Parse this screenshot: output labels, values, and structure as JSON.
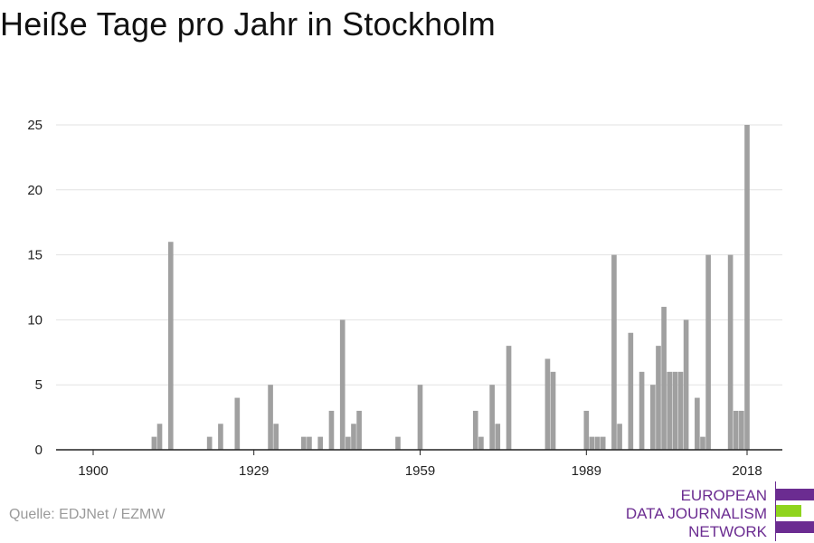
{
  "title": "Heiße Tage pro Jahr in Stockholm",
  "source": "Quelle: EDJNet / EZMW",
  "logo": {
    "line1": "EUROPEAN",
    "line2": "DATA JOURNALISM",
    "line3": "NETWORK",
    "colors": {
      "purple": "#6b2c91",
      "green": "#8fd41e"
    }
  },
  "colors": {
    "bar": "#a0a0a0",
    "grid": "#e2e2e2",
    "axis": "#222222"
  },
  "chart_data": {
    "type": "bar",
    "title": "Heiße Tage pro Jahr in Stockholm",
    "xlabel": "",
    "ylabel": "",
    "x_range": [
      1900,
      2018
    ],
    "ylim": [
      0,
      25
    ],
    "y_ticks": [
      0,
      5,
      10,
      15,
      20,
      25
    ],
    "x_ticks": [
      1900,
      1929,
      1959,
      1989,
      2018
    ],
    "grid": true,
    "x": [
      1911,
      1912,
      1914,
      1921,
      1923,
      1926,
      1932,
      1933,
      1938,
      1939,
      1941,
      1943,
      1945,
      1946,
      1947,
      1948,
      1955,
      1959,
      1969,
      1970,
      1972,
      1973,
      1975,
      1982,
      1983,
      1989,
      1990,
      1991,
      1992,
      1994,
      1995,
      1997,
      1999,
      2001,
      2002,
      2003,
      2004,
      2005,
      2006,
      2007,
      2009,
      2010,
      2011,
      2015,
      2016,
      2017,
      2018
    ],
    "values": [
      1,
      2,
      16,
      1,
      2,
      4,
      5,
      2,
      1,
      1,
      1,
      3,
      10,
      1,
      2,
      3,
      1,
      5,
      3,
      1,
      5,
      2,
      8,
      7,
      6,
      3,
      1,
      1,
      1,
      15,
      2,
      9,
      6,
      5,
      8,
      11,
      6,
      6,
      6,
      10,
      4,
      1,
      15,
      15,
      3,
      3,
      25
    ]
  }
}
